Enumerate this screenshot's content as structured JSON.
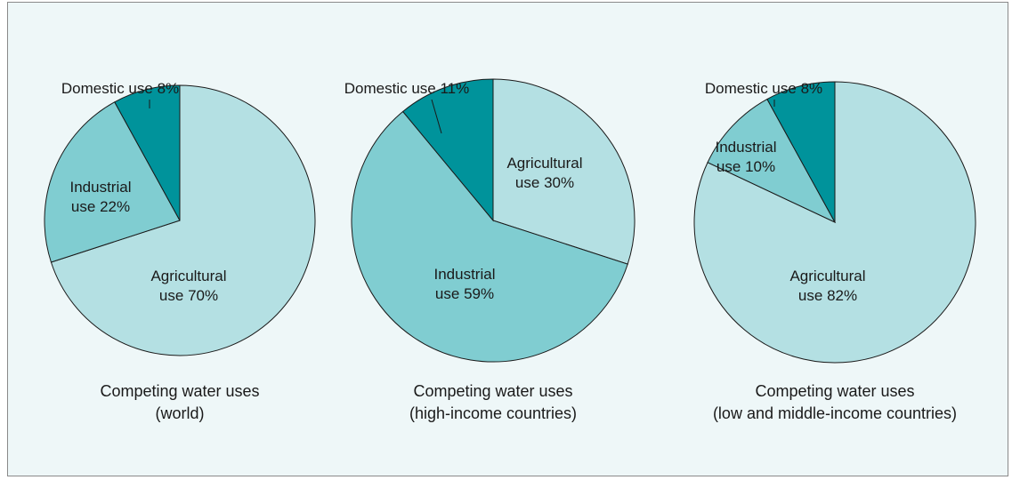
{
  "chart_data": [
    {
      "type": "pie",
      "title": "Competing water uses",
      "subtitle": "(world)",
      "categories": [
        "Agricultural use",
        "Industrial use",
        "Domestic use"
      ],
      "values": [
        70,
        22,
        8
      ],
      "value_labels": [
        "70%",
        "22%",
        "8%"
      ],
      "colors": [
        "#b4e0e3",
        "#80cdd1",
        "#00939b"
      ]
    },
    {
      "type": "pie",
      "title": "Competing water uses",
      "subtitle": "(high-income countries)",
      "categories": [
        "Agricultural use",
        "Industrial use",
        "Domestic use"
      ],
      "values": [
        30,
        59,
        11
      ],
      "value_labels": [
        "30%",
        "59%",
        "11%"
      ],
      "colors": [
        "#b4e0e3",
        "#80cdd1",
        "#00939b"
      ]
    },
    {
      "type": "pie",
      "title": "Competing water uses",
      "subtitle": "(low and middle-income countries)",
      "categories": [
        "Agricultural use",
        "Industrial use",
        "Domestic use"
      ],
      "values": [
        82,
        10,
        8
      ],
      "value_labels": [
        "82%",
        "10%",
        "8%"
      ],
      "colors": [
        "#b4e0e3",
        "#80cdd1",
        "#00939b"
      ]
    }
  ]
}
